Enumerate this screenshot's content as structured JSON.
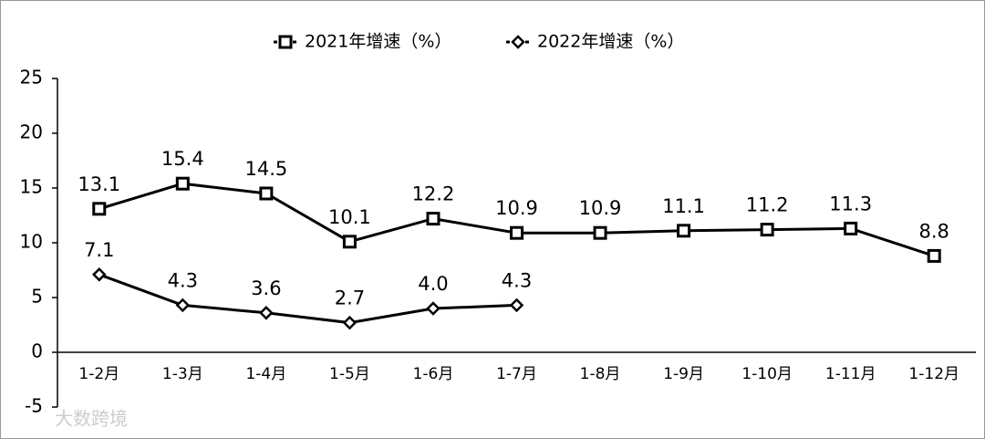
{
  "chart_data": {
    "type": "line",
    "categories": [
      "1-2月",
      "1-3月",
      "1-4月",
      "1-5月",
      "1-6月",
      "1-7月",
      "1-8月",
      "1-9月",
      "1-10月",
      "1-11月",
      "1-12月"
    ],
    "series": [
      {
        "name": "2021年增速（%）",
        "color": "#000000",
        "marker": "square",
        "values": [
          13.1,
          15.4,
          14.5,
          10.1,
          12.2,
          10.9,
          10.9,
          11.1,
          11.2,
          11.3,
          8.8
        ],
        "value_labels": [
          "13.1",
          "15.4",
          "14.5",
          "10.1",
          "12.2",
          "10.9",
          "10.9",
          "11.1",
          "11.2",
          "11.3",
          "8.8"
        ]
      },
      {
        "name": "2022年增速（%）",
        "color": "#000000",
        "marker": "diamond",
        "values": [
          7.1,
          4.3,
          3.6,
          2.7,
          4.0,
          4.3,
          null,
          null,
          null,
          null,
          null
        ],
        "value_labels": [
          "7.1",
          "4.3",
          "3.6",
          "2.7",
          "4.0",
          "4.3",
          null,
          null,
          null,
          null,
          null
        ]
      }
    ],
    "ylim": [
      -5,
      25
    ],
    "yticks": [
      -5,
      0,
      5,
      10,
      15,
      20,
      25
    ],
    "grid": false,
    "legend": "top",
    "watermark": "大数跨境"
  }
}
